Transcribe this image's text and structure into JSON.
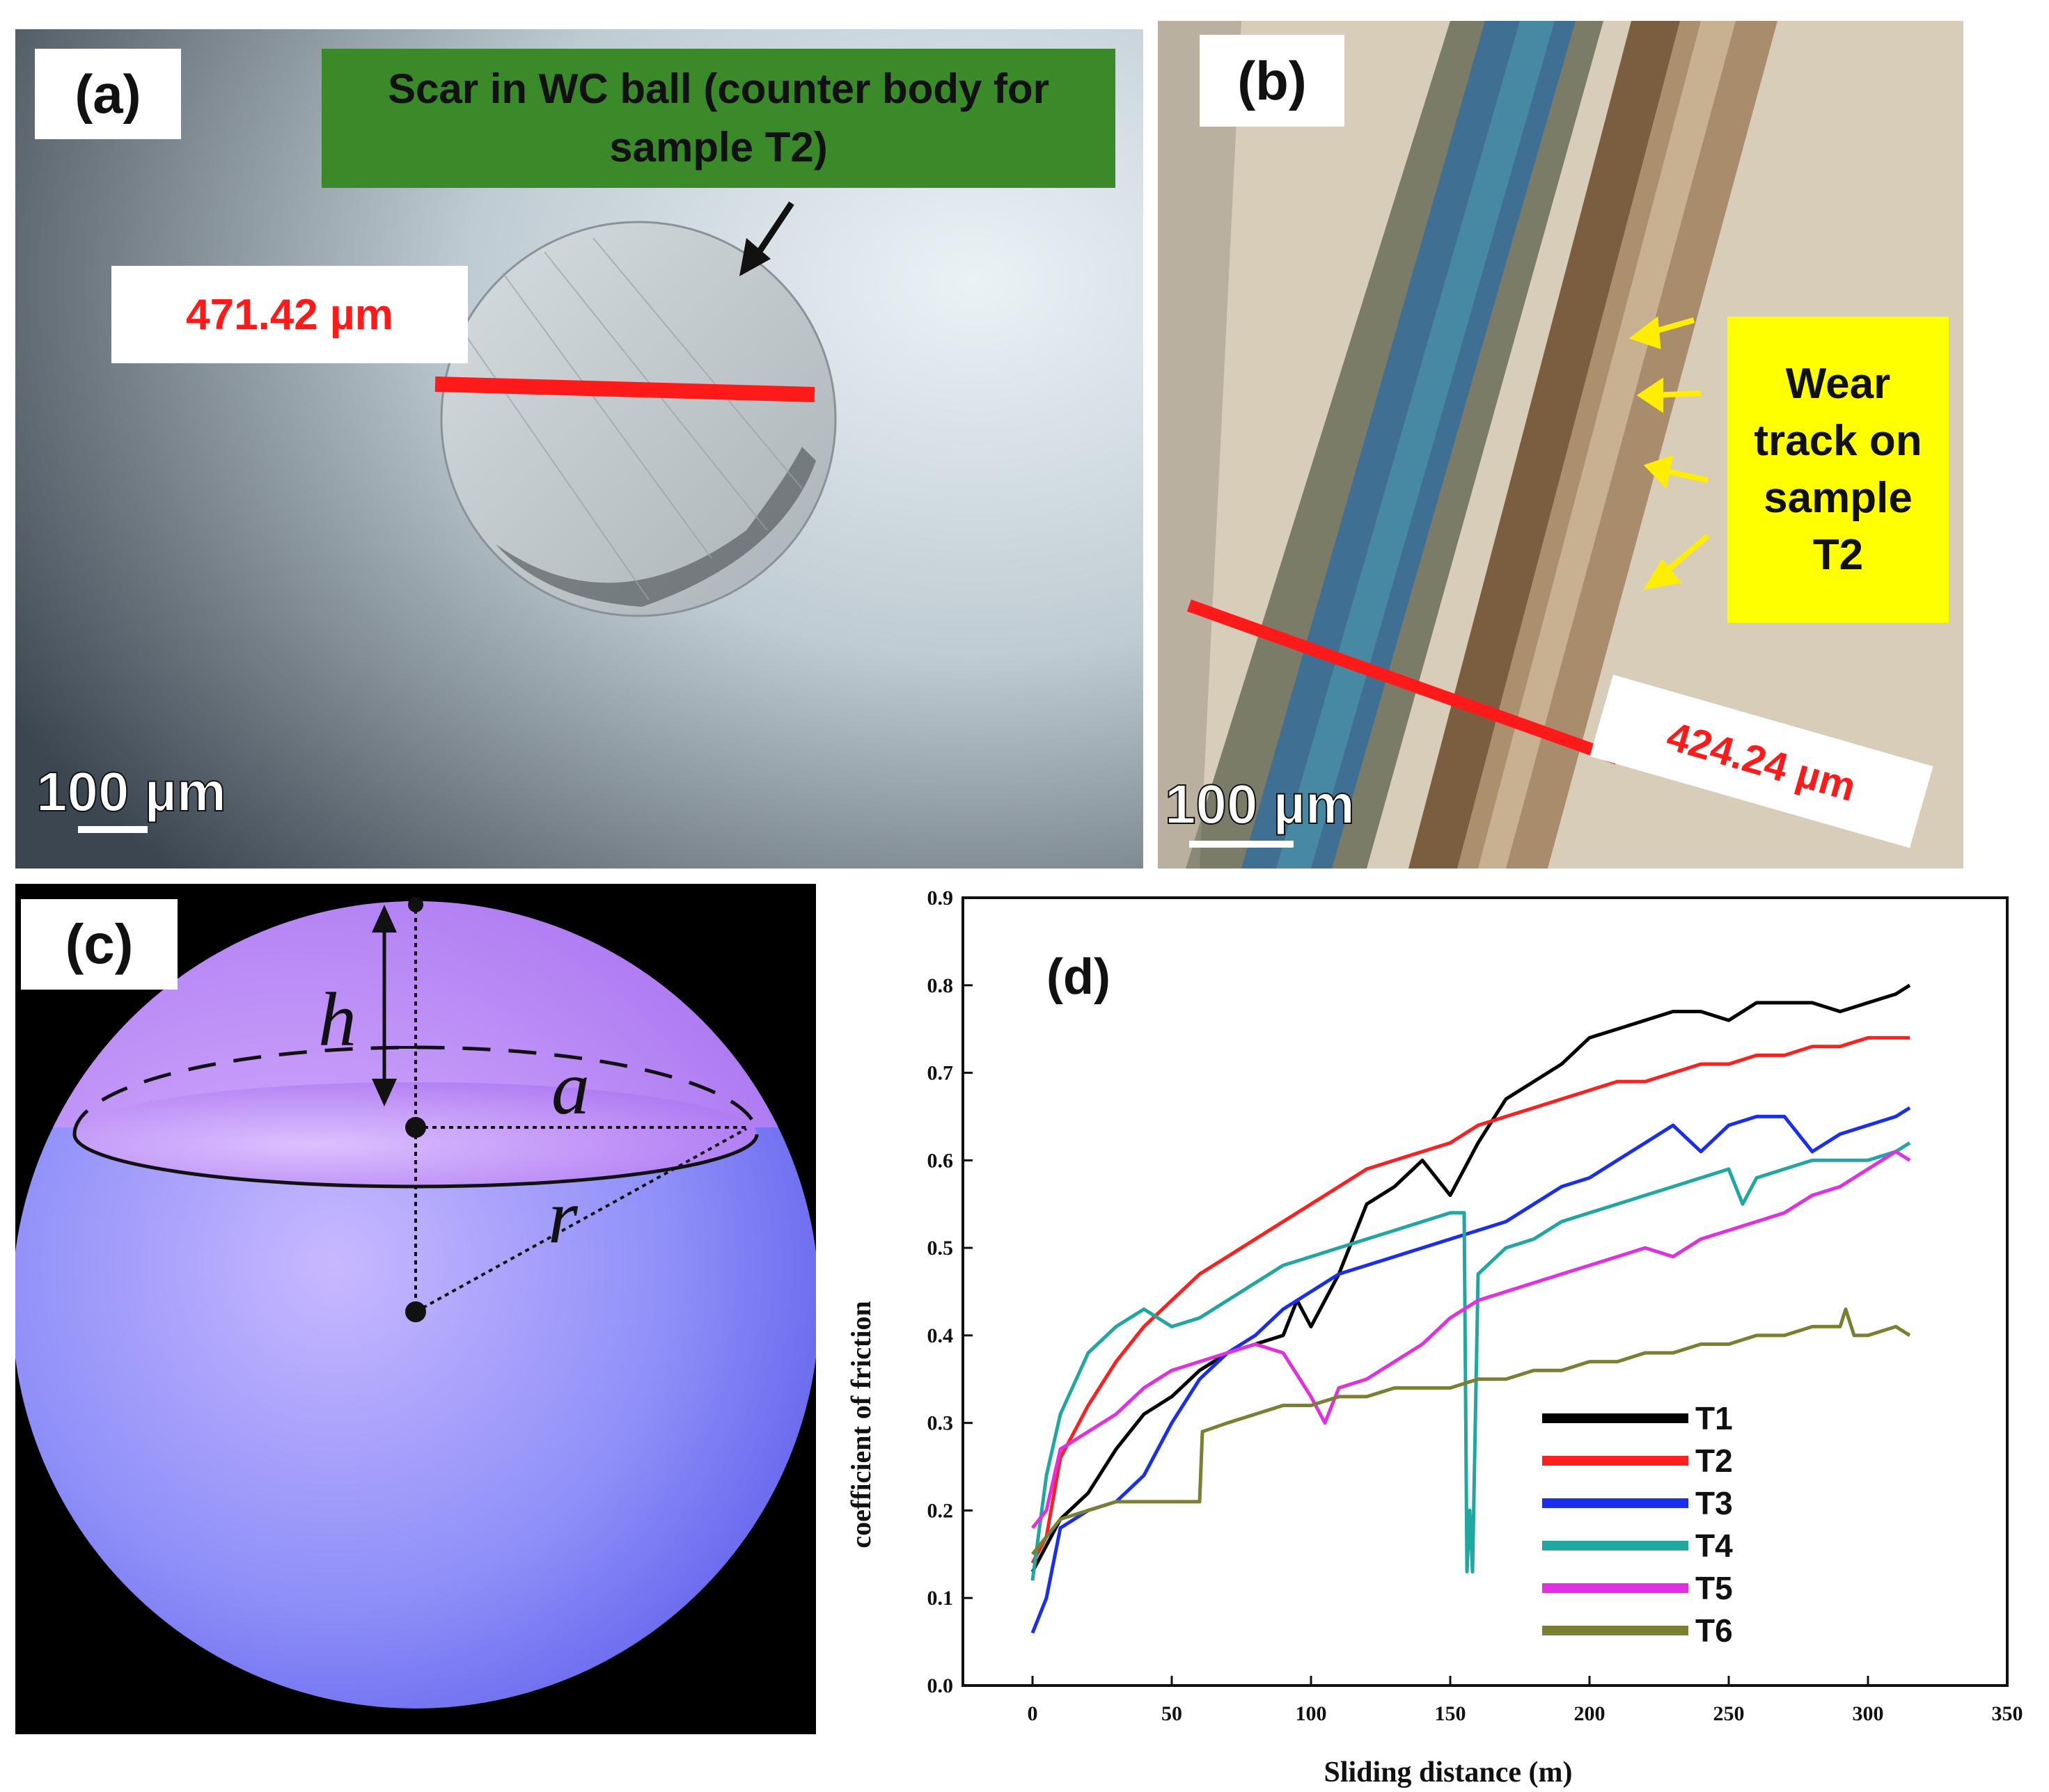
{
  "panel_a": {
    "label": "(a)",
    "callout": "Scar in WC ball (counter body for sample T2)",
    "measurement": "471.42 µm",
    "scale_bar": "100 µm",
    "colors": {
      "callout_bg": "#3a8a2a",
      "measure_line": "#ff1a1a"
    }
  },
  "panel_b": {
    "label": "(b)",
    "callout": "Wear track on sample T2",
    "measurement": "424.24 µm",
    "scale_bar": "100 µm",
    "colors": {
      "callout_bg": "#ffff00",
      "arrow": "#ffee00"
    }
  },
  "panel_c": {
    "label": "(c)",
    "var_h": "h",
    "var_a": "a",
    "var_r": "r",
    "colors": {
      "cap": "#b07cf0",
      "sphere": "#7a78f5"
    }
  },
  "chart_data": {
    "type": "line",
    "panel_label": "(d)",
    "xlabel": "Sliding distance (m)",
    "ylabel": "coefficient of friction",
    "xlim": [
      -25,
      350
    ],
    "ylim": [
      0.0,
      0.9
    ],
    "xticks": [
      "0",
      "50",
      "100",
      "150",
      "200",
      "250",
      "300",
      "350"
    ],
    "yticks": [
      "0.0",
      "0.1",
      "0.2",
      "0.3",
      "0.4",
      "0.5",
      "0.6",
      "0.7",
      "0.8",
      "0.9"
    ],
    "legend_position": "lower-right",
    "grid": false,
    "series": [
      {
        "name": "T1",
        "color": "#000000",
        "x": [
          0,
          5,
          10,
          20,
          30,
          40,
          50,
          60,
          70,
          80,
          90,
          95,
          100,
          110,
          120,
          130,
          140,
          150,
          160,
          170,
          180,
          190,
          200,
          210,
          220,
          230,
          240,
          250,
          260,
          270,
          280,
          290,
          300,
          310,
          315
        ],
        "y": [
          0.13,
          0.16,
          0.19,
          0.22,
          0.27,
          0.31,
          0.33,
          0.36,
          0.38,
          0.39,
          0.4,
          0.44,
          0.41,
          0.47,
          0.55,
          0.57,
          0.6,
          0.56,
          0.62,
          0.67,
          0.69,
          0.71,
          0.74,
          0.75,
          0.76,
          0.77,
          0.77,
          0.76,
          0.78,
          0.78,
          0.78,
          0.77,
          0.78,
          0.79,
          0.8
        ]
      },
      {
        "name": "T2",
        "color": "#ff1f1f",
        "x": [
          0,
          5,
          10,
          20,
          30,
          40,
          50,
          60,
          70,
          80,
          90,
          100,
          110,
          120,
          130,
          140,
          150,
          160,
          170,
          180,
          190,
          200,
          210,
          220,
          230,
          240,
          250,
          260,
          270,
          280,
          290,
          300,
          310,
          315
        ],
        "y": [
          0.14,
          0.17,
          0.26,
          0.32,
          0.37,
          0.41,
          0.44,
          0.47,
          0.49,
          0.51,
          0.53,
          0.55,
          0.57,
          0.59,
          0.6,
          0.61,
          0.62,
          0.64,
          0.65,
          0.66,
          0.67,
          0.68,
          0.69,
          0.69,
          0.7,
          0.71,
          0.71,
          0.72,
          0.72,
          0.73,
          0.73,
          0.74,
          0.74,
          0.74
        ]
      },
      {
        "name": "T3",
        "color": "#1a2ef0",
        "x": [
          0,
          5,
          10,
          20,
          30,
          40,
          50,
          60,
          70,
          80,
          90,
          100,
          110,
          120,
          130,
          140,
          150,
          160,
          170,
          180,
          190,
          200,
          210,
          220,
          230,
          240,
          250,
          260,
          270,
          280,
          290,
          300,
          310,
          315
        ],
        "y": [
          0.06,
          0.1,
          0.18,
          0.2,
          0.21,
          0.24,
          0.3,
          0.35,
          0.38,
          0.4,
          0.43,
          0.45,
          0.47,
          0.48,
          0.49,
          0.5,
          0.51,
          0.52,
          0.53,
          0.55,
          0.57,
          0.58,
          0.6,
          0.62,
          0.64,
          0.61,
          0.64,
          0.65,
          0.65,
          0.61,
          0.63,
          0.64,
          0.65,
          0.66
        ]
      },
      {
        "name": "T4",
        "color": "#20a8a0",
        "x": [
          0,
          5,
          10,
          20,
          30,
          40,
          50,
          60,
          70,
          80,
          90,
          100,
          110,
          120,
          130,
          140,
          150,
          155,
          156,
          157,
          158,
          160,
          170,
          180,
          190,
          200,
          210,
          220,
          230,
          240,
          250,
          255,
          260,
          270,
          280,
          290,
          300,
          310,
          315
        ],
        "y": [
          0.12,
          0.24,
          0.31,
          0.38,
          0.41,
          0.43,
          0.41,
          0.42,
          0.44,
          0.46,
          0.48,
          0.49,
          0.5,
          0.51,
          0.52,
          0.53,
          0.54,
          0.54,
          0.13,
          0.2,
          0.13,
          0.47,
          0.5,
          0.51,
          0.53,
          0.54,
          0.55,
          0.56,
          0.57,
          0.58,
          0.59,
          0.55,
          0.58,
          0.59,
          0.6,
          0.6,
          0.6,
          0.61,
          0.62
        ]
      },
      {
        "name": "T5",
        "color": "#e030e0",
        "x": [
          0,
          5,
          10,
          20,
          30,
          40,
          50,
          60,
          70,
          80,
          90,
          100,
          105,
          110,
          120,
          130,
          140,
          150,
          160,
          170,
          180,
          190,
          200,
          210,
          220,
          230,
          240,
          250,
          260,
          270,
          280,
          290,
          300,
          310,
          315
        ],
        "y": [
          0.18,
          0.2,
          0.27,
          0.29,
          0.31,
          0.34,
          0.36,
          0.37,
          0.38,
          0.39,
          0.38,
          0.33,
          0.3,
          0.34,
          0.35,
          0.37,
          0.39,
          0.42,
          0.44,
          0.45,
          0.46,
          0.47,
          0.48,
          0.49,
          0.5,
          0.49,
          0.51,
          0.52,
          0.53,
          0.54,
          0.56,
          0.57,
          0.59,
          0.61,
          0.6
        ]
      },
      {
        "name": "T6",
        "color": "#7a8030",
        "x": [
          0,
          5,
          10,
          20,
          30,
          40,
          50,
          60,
          61,
          70,
          80,
          90,
          100,
          110,
          120,
          130,
          140,
          150,
          160,
          170,
          180,
          190,
          200,
          210,
          220,
          230,
          240,
          250,
          260,
          270,
          280,
          290,
          292,
          295,
          300,
          310,
          315
        ],
        "y": [
          0.15,
          0.17,
          0.19,
          0.2,
          0.21,
          0.21,
          0.21,
          0.21,
          0.29,
          0.3,
          0.31,
          0.32,
          0.32,
          0.33,
          0.33,
          0.34,
          0.34,
          0.34,
          0.35,
          0.35,
          0.36,
          0.36,
          0.37,
          0.37,
          0.38,
          0.38,
          0.39,
          0.39,
          0.4,
          0.4,
          0.41,
          0.41,
          0.43,
          0.4,
          0.4,
          0.41,
          0.4
        ]
      }
    ]
  }
}
